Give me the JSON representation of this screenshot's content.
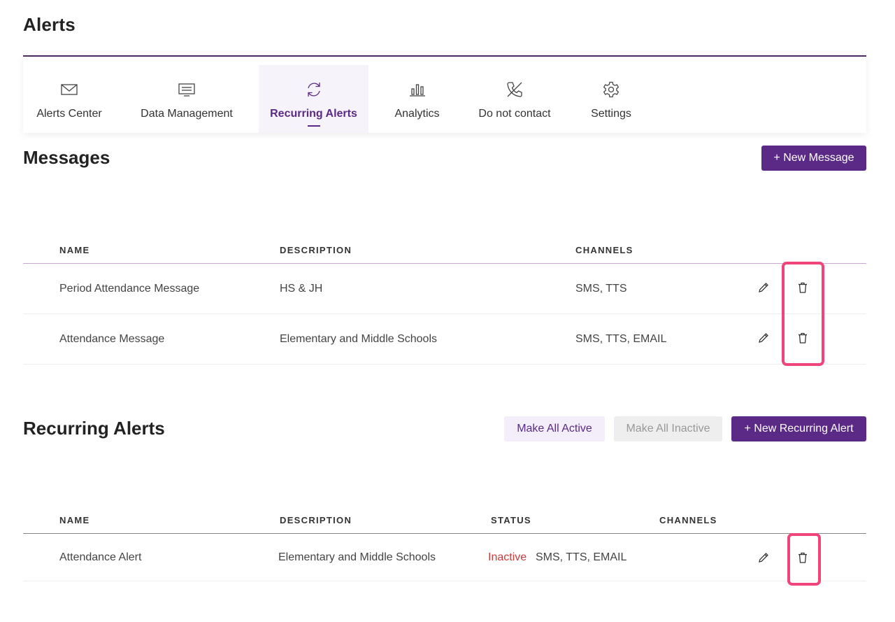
{
  "page": {
    "title": "Alerts"
  },
  "nav": {
    "tabs": [
      {
        "label": "Alerts Center",
        "icon": "mail-icon"
      },
      {
        "label": "Data Management",
        "icon": "message-icon"
      },
      {
        "label": "Recurring Alerts",
        "icon": "refresh-icon",
        "active": true
      },
      {
        "label": "Analytics",
        "icon": "bar-chart-icon"
      },
      {
        "label": "Do not contact",
        "icon": "phone-off-icon"
      },
      {
        "label": "Settings",
        "icon": "gear-icon"
      }
    ]
  },
  "messages": {
    "title": "Messages",
    "new_button": "+ New Message",
    "columns": {
      "name": "NAME",
      "description": "DESCRIPTION",
      "channels": "CHANNELS"
    },
    "rows": [
      {
        "name": "Period Attendance Message",
        "description": "HS & JH",
        "channels": "SMS, TTS"
      },
      {
        "name": "Attendance Message",
        "description": "Elementary and Middle Schools",
        "channels": "SMS, TTS, EMAIL"
      }
    ]
  },
  "recurring": {
    "title": "Recurring Alerts",
    "make_all_active": "Make All Active",
    "make_all_inactive": "Make All Inactive",
    "new_button": "+ New Recurring Alert",
    "columns": {
      "name": "NAME",
      "description": "DESCRIPTION",
      "status": "STATUS",
      "channels": "CHANNELS"
    },
    "rows": [
      {
        "name": "Attendance Alert",
        "description": "Elementary and Middle Schools",
        "status": "Inactive",
        "channels": "SMS, TTS, EMAIL"
      }
    ]
  },
  "colors": {
    "accent": "#5b2a86",
    "inactive": "#d03a3a",
    "highlight": "#f0457a"
  }
}
